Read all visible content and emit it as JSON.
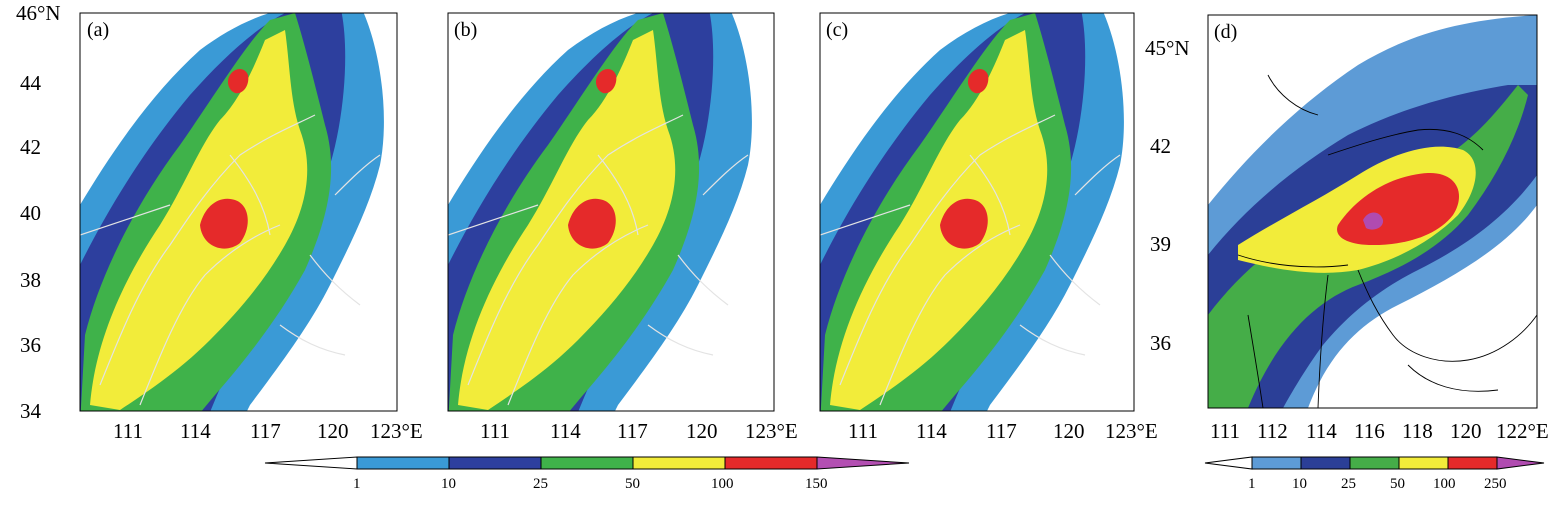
{
  "colors": {
    "c1_10": "#3a9ad6",
    "c10_25": "#2d3f9e",
    "c25_50": "#3fb24a",
    "c50_100": "#f2ec3a",
    "c100_150": "#e52a2a",
    "c150_plus": "#b34fb2",
    "d1_10": "#5d9bd6",
    "d10_25": "#2b3f97",
    "d25_50": "#45ad48",
    "d50_100": "#f2ec3a",
    "d100_250": "#e52a2a",
    "d250_plus": "#b04bb0",
    "border_light": "#e3e3e3",
    "border_dark": "#000000"
  },
  "panels": [
    {
      "label": "(a)",
      "lat_ticks": [
        "46°N",
        "44",
        "42",
        "40",
        "38",
        "36",
        "34"
      ],
      "lon_ticks": [
        "111",
        "114",
        "117",
        "120",
        "123°E"
      ]
    },
    {
      "label": "(b)",
      "lon_ticks": [
        "111",
        "114",
        "117",
        "120",
        "123°E"
      ]
    },
    {
      "label": "(c)",
      "lon_ticks": [
        "111",
        "114",
        "117",
        "120",
        "123°E"
      ]
    },
    {
      "label": "(d)",
      "lat_ticks": [
        "45°N",
        "42",
        "39",
        "36"
      ],
      "lon_ticks": [
        "111",
        "112",
        "114",
        "116",
        "118",
        "120",
        "122°E"
      ]
    }
  ],
  "colorbar_abc": {
    "labels": [
      "1",
      "10",
      "25",
      "50",
      "100",
      "150"
    ]
  },
  "colorbar_d": {
    "labels": [
      "1",
      "10",
      "25",
      "50",
      "100",
      "250"
    ]
  }
}
